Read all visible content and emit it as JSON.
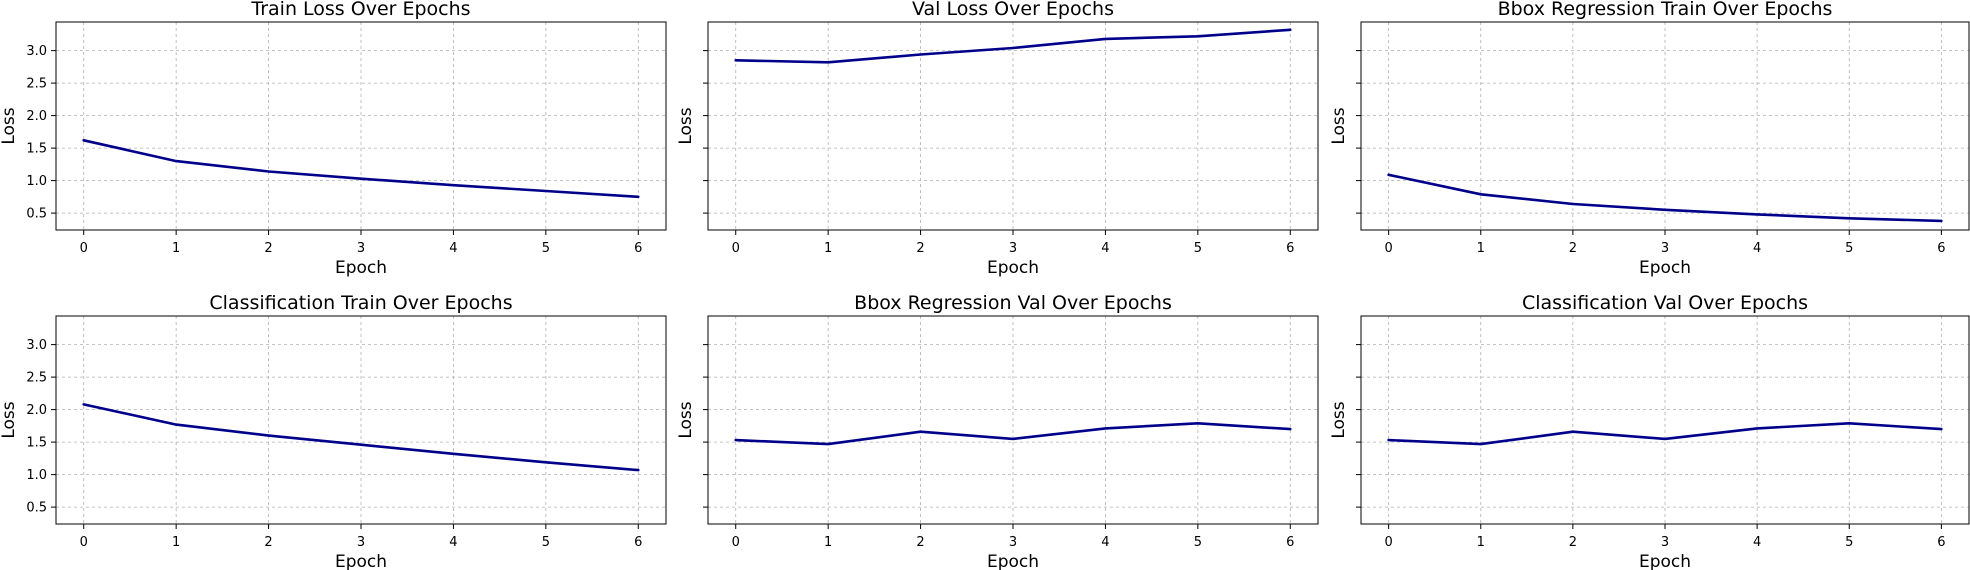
{
  "chart_data": [
    {
      "type": "line",
      "title": "Train Loss Over Epochs",
      "xlabel": "Epoch",
      "ylabel": "Loss",
      "x": [
        0,
        1,
        2,
        3,
        4,
        5,
        6
      ],
      "series": [
        {
          "values": [
            1.62,
            1.3,
            1.14,
            1.03,
            0.93,
            0.84,
            0.75
          ]
        }
      ],
      "xlim": [
        -0.3,
        6.3
      ],
      "ylim": [
        0.24,
        3.44
      ],
      "yticks": [
        0.5,
        1.0,
        1.5,
        2.0,
        2.5,
        3.0
      ],
      "show_ytick_labels": true,
      "grid": true
    },
    {
      "type": "line",
      "title": "Val Loss Over Epochs",
      "xlabel": "Epoch",
      "ylabel": "Loss",
      "x": [
        0,
        1,
        2,
        3,
        4,
        5,
        6
      ],
      "series": [
        {
          "values": [
            2.85,
            2.82,
            2.94,
            3.04,
            3.18,
            3.22,
            3.32
          ]
        }
      ],
      "xlim": [
        -0.3,
        6.3
      ],
      "ylim": [
        0.24,
        3.44
      ],
      "yticks": [
        0.5,
        1.0,
        1.5,
        2.0,
        2.5,
        3.0
      ],
      "show_ytick_labels": false,
      "grid": true
    },
    {
      "type": "line",
      "title": "Bbox Regression Train Over Epochs",
      "xlabel": "Epoch",
      "ylabel": "Loss",
      "x": [
        0,
        1,
        2,
        3,
        4,
        5,
        6
      ],
      "series": [
        {
          "values": [
            1.09,
            0.79,
            0.64,
            0.55,
            0.48,
            0.42,
            0.38
          ]
        }
      ],
      "xlim": [
        -0.3,
        6.3
      ],
      "ylim": [
        0.24,
        3.44
      ],
      "yticks": [
        0.5,
        1.0,
        1.5,
        2.0,
        2.5,
        3.0
      ],
      "show_ytick_labels": false,
      "grid": true
    },
    {
      "type": "line",
      "title": "Classification Train Over Epochs",
      "xlabel": "Epoch",
      "ylabel": "Loss",
      "x": [
        0,
        1,
        2,
        3,
        4,
        5,
        6
      ],
      "series": [
        {
          "values": [
            2.08,
            1.77,
            1.6,
            1.46,
            1.32,
            1.19,
            1.07
          ]
        }
      ],
      "xlim": [
        -0.3,
        6.3
      ],
      "ylim": [
        0.24,
        3.44
      ],
      "yticks": [
        0.5,
        1.0,
        1.5,
        2.0,
        2.5,
        3.0
      ],
      "show_ytick_labels": true,
      "grid": true
    },
    {
      "type": "line",
      "title": "Bbox Regression Val Over Epochs",
      "xlabel": "Epoch",
      "ylabel": "Loss",
      "x": [
        0,
        1,
        2,
        3,
        4,
        5,
        6
      ],
      "series": [
        {
          "values": [
            1.53,
            1.47,
            1.66,
            1.55,
            1.71,
            1.79,
            1.7
          ]
        }
      ],
      "xlim": [
        -0.3,
        6.3
      ],
      "ylim": [
        0.24,
        3.44
      ],
      "yticks": [
        0.5,
        1.0,
        1.5,
        2.0,
        2.5,
        3.0
      ],
      "show_ytick_labels": false,
      "grid": true
    },
    {
      "type": "line",
      "title": "Classification Val Over Epochs",
      "xlabel": "Epoch",
      "ylabel": "Loss",
      "x": [
        0,
        1,
        2,
        3,
        4,
        5,
        6
      ],
      "series": [
        {
          "values": [
            1.53,
            1.47,
            1.66,
            1.55,
            1.71,
            1.79,
            1.7
          ]
        }
      ],
      "xlim": [
        -0.3,
        6.3
      ],
      "ylim": [
        0.24,
        3.44
      ],
      "yticks": [
        0.5,
        1.0,
        1.5,
        2.0,
        2.5,
        3.0
      ],
      "show_ytick_labels": false,
      "grid": true
    }
  ],
  "colors": {
    "line": "#00008b",
    "grid": "#b0b0b0",
    "frame": "#000000"
  }
}
